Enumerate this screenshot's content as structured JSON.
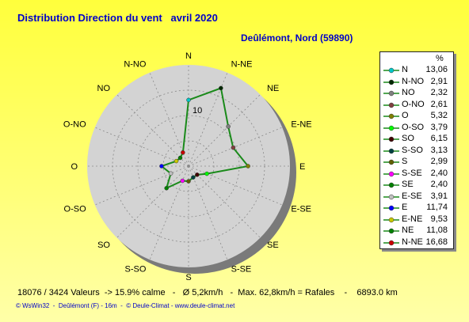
{
  "header": {
    "title": "Distribution Direction du vent   avril 2020",
    "location": "Deûlémont, Nord (59890)"
  },
  "chart_data": {
    "type": "radar",
    "directions": [
      "N",
      "N-NE",
      "NE",
      "E-NE",
      "E",
      "E-SE",
      "SE",
      "S-SE",
      "S",
      "S-SO",
      "SO",
      "O-SO",
      "O",
      "O-NO",
      "NO",
      "N-NO"
    ],
    "values": [
      13.06,
      16.68,
      11.08,
      9.53,
      11.74,
      3.91,
      2.4,
      2.4,
      2.99,
      3.13,
      6.15,
      3.79,
      5.32,
      2.61,
      2.32,
      2.91
    ],
    "rmax": 20,
    "ring_label": "10",
    "colors": [
      "#00c8c8",
      "#002800",
      "#808080",
      "#804040",
      "#808000",
      "#00ff00",
      "#400000",
      "#004040",
      "#606000",
      "#ff00ff",
      "#008000",
      "#c0c0c0",
      "#0000ff",
      "#c8c800",
      "#008000",
      "#c80000"
    ],
    "line_color": "#1a8a1a"
  },
  "legend": {
    "unit": "%",
    "items": [
      {
        "label": "N",
        "value": "13,06",
        "color": "#00c8c8"
      },
      {
        "label": "N-NO",
        "value": "2,91",
        "color": "#002800"
      },
      {
        "label": "NO",
        "value": "2,32",
        "color": "#808080"
      },
      {
        "label": "O-NO",
        "value": "2,61",
        "color": "#804040"
      },
      {
        "label": "O",
        "value": "5,32",
        "color": "#808000"
      },
      {
        "label": "O-SO",
        "value": "3,79",
        "color": "#00ff00"
      },
      {
        "label": "SO",
        "value": "6,15",
        "color": "#400000"
      },
      {
        "label": "S-SO",
        "value": "3,13",
        "color": "#004040"
      },
      {
        "label": "S",
        "value": "2,99",
        "color": "#606000"
      },
      {
        "label": "S-SE",
        "value": "2,40",
        "color": "#ff00ff"
      },
      {
        "label": "SE",
        "value": "2,40",
        "color": "#008000"
      },
      {
        "label": "E-SE",
        "value": "3,91",
        "color": "#c0c0c0"
      },
      {
        "label": "E",
        "value": "11,74",
        "color": "#0000ff"
      },
      {
        "label": "E-NE",
        "value": "9,53",
        "color": "#c8c800"
      },
      {
        "label": "NE",
        "value": "11,08",
        "color": "#008000"
      },
      {
        "label": "N-NE",
        "value": "16,68",
        "color": "#c80000"
      }
    ]
  },
  "footer": {
    "stats": "18076 / 3424 Valeurs  -> 15.9% calme   -   Ø 5,2km/h   -  Max. 62,8km/h = Rafales    -    6893.0 km",
    "credits": "© WsWin32  -  Deûlémont (F) - 16m  -  © Deule-Climat - www.deule-climat.net"
  }
}
